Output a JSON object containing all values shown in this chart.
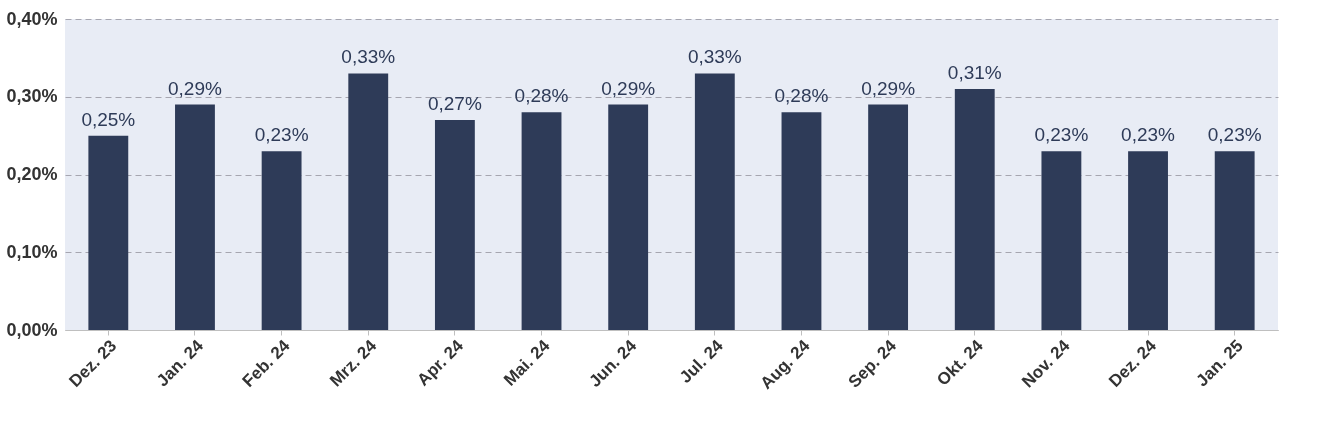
{
  "chart_data": {
    "type": "bar",
    "categories": [
      "Dez. 23",
      "Jan. 24",
      "Feb. 24",
      "Mrz. 24",
      "Apr. 24",
      "Mai. 24",
      "Jun. 24",
      "Jul. 24",
      "Aug. 24",
      "Sep. 24",
      "Okt. 24",
      "Nov. 24",
      "Dez. 24",
      "Jan. 25"
    ],
    "values": [
      0.25,
      0.29,
      0.23,
      0.33,
      0.27,
      0.28,
      0.29,
      0.33,
      0.28,
      0.29,
      0.31,
      0.23,
      0.23,
      0.23
    ],
    "value_labels": [
      "0,25%",
      "0,29%",
      "0,23%",
      "0,33%",
      "0,27%",
      "0,28%",
      "0,29%",
      "0,33%",
      "0,28%",
      "0,29%",
      "0,31%",
      "0,23%",
      "0,23%",
      "0,23%"
    ],
    "color": "#2e3b58",
    "ylim": [
      0,
      0.4
    ],
    "yticks": [
      {
        "value": 0,
        "label": "0,00%"
      },
      {
        "value": 0.1,
        "label": "0,10%"
      },
      {
        "value": 0.2,
        "label": "0,20%"
      },
      {
        "value": 0.3,
        "label": "0,30%"
      },
      {
        "value": 0.4,
        "label": "0,40%"
      }
    ],
    "grid": "y"
  }
}
